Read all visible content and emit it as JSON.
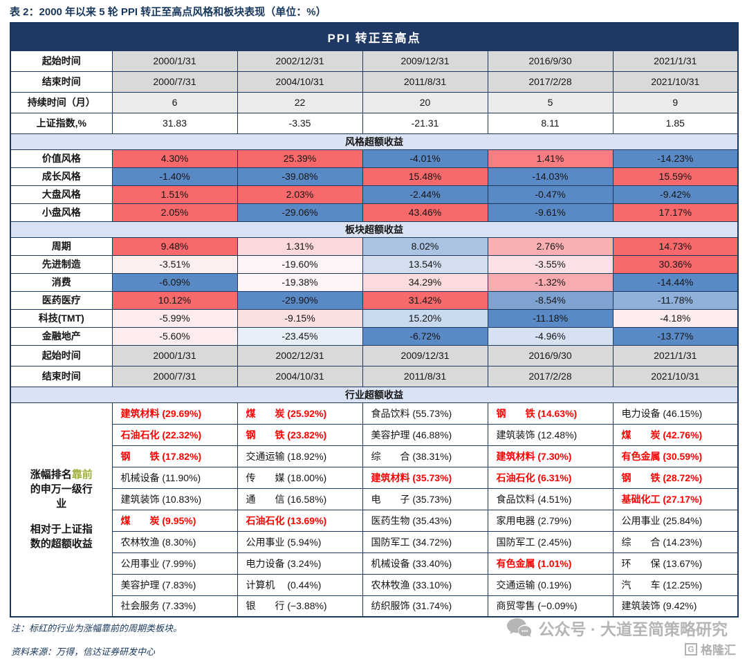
{
  "page_title": "表 2：2000 年以来 5 轮 PPI 转正至高点风格和板块表现（单位：%）",
  "chart_data": {
    "type": "table",
    "title": "2000 年以来 5 轮 PPI 转正至高点风格和板块表现（单位：%）",
    "group_header": "PPI 转正至高点",
    "periods": [
      {
        "start": "2000/1/31",
        "end": "2000/7/31",
        "duration_months": 6,
        "sse_index_pct": 31.83
      },
      {
        "start": "2002/12/31",
        "end": "2004/10/31",
        "duration_months": 22,
        "sse_index_pct": -3.35
      },
      {
        "start": "2009/12/31",
        "end": "2011/8/31",
        "duration_months": 20,
        "sse_index_pct": -21.31
      },
      {
        "start": "2016/9/30",
        "end": "2017/2/28",
        "duration_months": 5,
        "sse_index_pct": 8.11
      },
      {
        "start": "2021/1/31",
        "end": "2021/10/31",
        "duration_months": 9,
        "sse_index_pct": 1.85
      }
    ],
    "style_excess": {
      "section_title": "风格超额收益",
      "row_labels": [
        "价值风格",
        "成长风格",
        "大盘风格",
        "小盘风格"
      ],
      "values_pct": [
        [
          4.3,
          25.39,
          -4.01,
          1.41,
          -14.23
        ],
        [
          -1.4,
          -39.08,
          15.48,
          -14.03,
          15.59
        ],
        [
          1.51,
          2.03,
          -2.44,
          -0.47,
          -9.42
        ],
        [
          2.05,
          -29.06,
          43.46,
          -9.61,
          17.17
        ]
      ]
    },
    "sector_excess": {
      "section_title": "板块超额收益",
      "row_labels": [
        "周期",
        "先进制造",
        "消费",
        "医药医疗",
        "科技(TMT)",
        "金融地产"
      ],
      "values_pct": [
        [
          9.48,
          1.31,
          8.02,
          2.76,
          14.73
        ],
        [
          -3.51,
          -19.6,
          13.54,
          -3.55,
          30.36
        ],
        [
          -6.09,
          -19.38,
          34.29,
          -1.32,
          -14.44
        ],
        [
          10.12,
          -29.9,
          31.42,
          -8.54,
          -11.78
        ],
        [
          -5.99,
          -9.15,
          15.2,
          -11.18,
          -4.18
        ],
        [
          -5.6,
          -23.45,
          -6.72,
          -4.96,
          -13.77
        ]
      ]
    },
    "industry_excess": {
      "section_title": "行业超额收益",
      "rows": [
        [
          {
            "n": "建筑材料",
            "v": 29.69,
            "r": true
          },
          {
            "n": "煤　　炭",
            "v": 25.92,
            "r": true
          },
          {
            "n": "食品饮料",
            "v": 55.73,
            "r": false
          },
          {
            "n": "钢　　铁",
            "v": 14.63,
            "r": true
          },
          {
            "n": "电力设备",
            "v": 46.15,
            "r": false
          }
        ],
        [
          {
            "n": "石油石化",
            "v": 22.32,
            "r": true
          },
          {
            "n": "钢　　铁",
            "v": 23.82,
            "r": true
          },
          {
            "n": "美容护理",
            "v": 46.88,
            "r": false
          },
          {
            "n": "建筑装饰",
            "v": 12.48,
            "r": false
          },
          {
            "n": "煤　　炭",
            "v": 42.76,
            "r": true
          }
        ],
        [
          {
            "n": "钢　　铁",
            "v": 17.82,
            "r": true
          },
          {
            "n": "交通运输",
            "v": 18.92,
            "r": false
          },
          {
            "n": "综　　合",
            "v": 38.31,
            "r": false
          },
          {
            "n": "建筑材料",
            "v": 7.3,
            "r": true
          },
          {
            "n": "有色金属",
            "v": 30.59,
            "r": true
          }
        ],
        [
          {
            "n": "机械设备",
            "v": 11.9,
            "r": false
          },
          {
            "n": "传　　媒",
            "v": 18.0,
            "r": false
          },
          {
            "n": "建筑材料",
            "v": 35.73,
            "r": true
          },
          {
            "n": "石油石化",
            "v": 6.31,
            "r": true
          },
          {
            "n": "钢　　铁",
            "v": 28.72,
            "r": true
          }
        ],
        [
          {
            "n": "建筑装饰",
            "v": 10.83,
            "r": false
          },
          {
            "n": "通　　信",
            "v": 16.58,
            "r": false
          },
          {
            "n": "电　　子",
            "v": 35.73,
            "r": false
          },
          {
            "n": "食品饮料",
            "v": 4.51,
            "r": false
          },
          {
            "n": "基础化工",
            "v": 27.17,
            "r": true
          }
        ],
        [
          {
            "n": "煤　　炭",
            "v": 9.95,
            "r": true
          },
          {
            "n": "石油石化",
            "v": 13.69,
            "r": true
          },
          {
            "n": "医药生物",
            "v": 35.43,
            "r": false
          },
          {
            "n": "家用电器",
            "v": 2.79,
            "r": false
          },
          {
            "n": "公用事业",
            "v": 25.84,
            "r": false
          }
        ],
        [
          {
            "n": "农林牧渔",
            "v": 8.3,
            "r": false
          },
          {
            "n": "公用事业",
            "v": 5.94,
            "r": false
          },
          {
            "n": "国防军工",
            "v": 34.72,
            "r": false
          },
          {
            "n": "国防军工",
            "v": 2.45,
            "r": false
          },
          {
            "n": "综　　合",
            "v": 14.23,
            "r": false
          }
        ],
        [
          {
            "n": "公用事业",
            "v": 7.99,
            "r": false
          },
          {
            "n": "电力设备",
            "v": 3.24,
            "r": false
          },
          {
            "n": "机械设备",
            "v": 33.4,
            "r": false
          },
          {
            "n": "有色金属",
            "v": 1.01,
            "r": true
          },
          {
            "n": "环　　保",
            "v": 13.67,
            "r": false
          }
        ],
        [
          {
            "n": "美容护理",
            "v": 7.83,
            "r": false
          },
          {
            "n": "计算机　",
            "v": 0.44,
            "r": false
          },
          {
            "n": "农林牧渔",
            "v": 33.1,
            "r": false
          },
          {
            "n": "交通运输",
            "v": 0.19,
            "r": false
          },
          {
            "n": "汽　　车",
            "v": 12.25,
            "r": false
          }
        ],
        [
          {
            "n": "社会服务",
            "v": 7.33,
            "r": false
          },
          {
            "n": "银　　行",
            "v": -3.88,
            "r": false
          },
          {
            "n": "纺织服饰",
            "v": 31.74,
            "r": false
          },
          {
            "n": "商贸零售",
            "v": -0.09,
            "r": false
          },
          {
            "n": "建筑装饰",
            "v": 9.42,
            "r": false
          }
        ]
      ]
    }
  },
  "table": {
    "row_labels": {
      "start": "起始时间",
      "end": "结束时间",
      "duration": "持续时间（月）",
      "sse": "上证指数,%"
    },
    "style_cell_colors": [
      [
        "#f8696b",
        "#f8696b",
        "#5a8ac6",
        "#f97e81",
        "#5a8ac6"
      ],
      [
        "#5a8ac6",
        "#5a8ac6",
        "#f8696b",
        "#5a8ac6",
        "#f8696b"
      ],
      [
        "#f8696b",
        "#f8696b",
        "#5a8ac6",
        "#5a8ac6",
        "#5a8ac6"
      ],
      [
        "#f8696b",
        "#5a8ac6",
        "#f8696b",
        "#5a8ac6",
        "#f8696b"
      ]
    ],
    "sector_cell_colors": [
      [
        "#f8696b",
        "#fbd8da",
        "#abc3e2",
        "#fab0b3",
        "#f8696b"
      ],
      [
        "#fdeef0",
        "#fdf4f5",
        "#d3dff1",
        "#fce2e4",
        "#f8696b"
      ],
      [
        "#5a8ac6",
        "#fdf4f5",
        "#fbdbdd",
        "#f9acaf",
        "#5a8ac6"
      ],
      [
        "#f8696b",
        "#5a8ac6",
        "#f8696b",
        "#7ea3d1",
        "#8fb0d9"
      ],
      [
        "#fdecee",
        "#fbe0e2",
        "#c9d9ee",
        "#5a8ac6",
        "#fdecee"
      ],
      [
        "#fdecee",
        "#e7eef8",
        "#5a8ac6",
        "#d6e1f2",
        "#5a8ac6"
      ]
    ],
    "side_label_lines": [
      [
        {
          "t": "涨幅排名",
          "h": false
        },
        {
          "t": "靠前",
          "h": true
        }
      ],
      [
        {
          "t": "的申万一级行",
          "h": false
        }
      ],
      [
        {
          "t": "业",
          "h": false
        }
      ],
      [],
      [
        {
          "t": "相对于上证指",
          "h": false
        }
      ],
      [
        {
          "t": "数的超额收益",
          "h": false
        }
      ]
    ]
  },
  "footer": {
    "note": "注：标红的行业为涨幅靠前的周期类板块。",
    "source": "资料来源：万得，信达证券研发中心",
    "wechat_label": "公众号 · 大道至简策略研究",
    "logo_letter": "G",
    "logo_text": "格隆汇"
  },
  "colors": {
    "navy_header": "#1f3864",
    "border": "#17375d",
    "gray_cell": "#d9d9d9",
    "light_gray_cell": "#ebebeb",
    "section_header_bg": "#dae3f3",
    "heat_red": "#f8696b",
    "heat_blue": "#5a8ac6",
    "industry_red_text": "#fe0000",
    "highlight_green_text": "#9fae3a",
    "watermark_gray": "#b5b5b5"
  }
}
